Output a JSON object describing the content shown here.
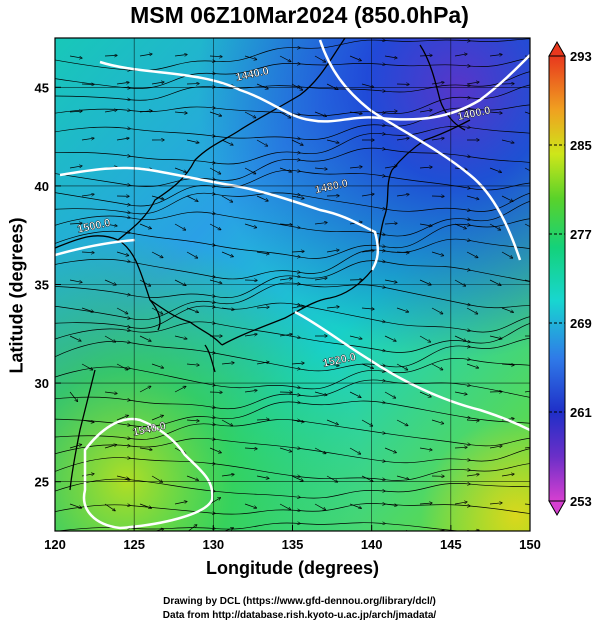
{
  "title": "MSM 06Z10Mar2024 (850.0hPa)",
  "xlabel": "Longitude (degrees)",
  "ylabel": "Latitude  (degrees)",
  "credits": {
    "line1": "Drawing by DCL (https://www.gfd-dennou.org/library/dcl/)",
    "line2": "Data from http://database.rish.kyoto-u.ac.jp/arch/jmadata/"
  },
  "chart_data": {
    "type": "heatmap",
    "x_range": [
      120,
      150
    ],
    "y_range": [
      22.5,
      47.5
    ],
    "x_ticks": [
      120,
      125,
      130,
      135,
      140,
      145,
      150
    ],
    "y_ticks": [
      25,
      30,
      35,
      40,
      45
    ],
    "colorbar": {
      "min": 253,
      "max": 293,
      "ticks": [
        253,
        261,
        269,
        277,
        285,
        293
      ]
    },
    "contour_labels": [
      {
        "text": "1440.0",
        "lon": 132.5,
        "lat": 45.5
      },
      {
        "text": "1400.0",
        "lon": 146.5,
        "lat": 43.5
      },
      {
        "text": "1480.0",
        "lon": 137.5,
        "lat": 39.8
      },
      {
        "text": "1500.0",
        "lon": 122.5,
        "lat": 37.8
      },
      {
        "text": "1520.0",
        "lon": 138.0,
        "lat": 31.0
      },
      {
        "text": "1540.0",
        "lon": 126.0,
        "lat": 27.5
      }
    ]
  }
}
